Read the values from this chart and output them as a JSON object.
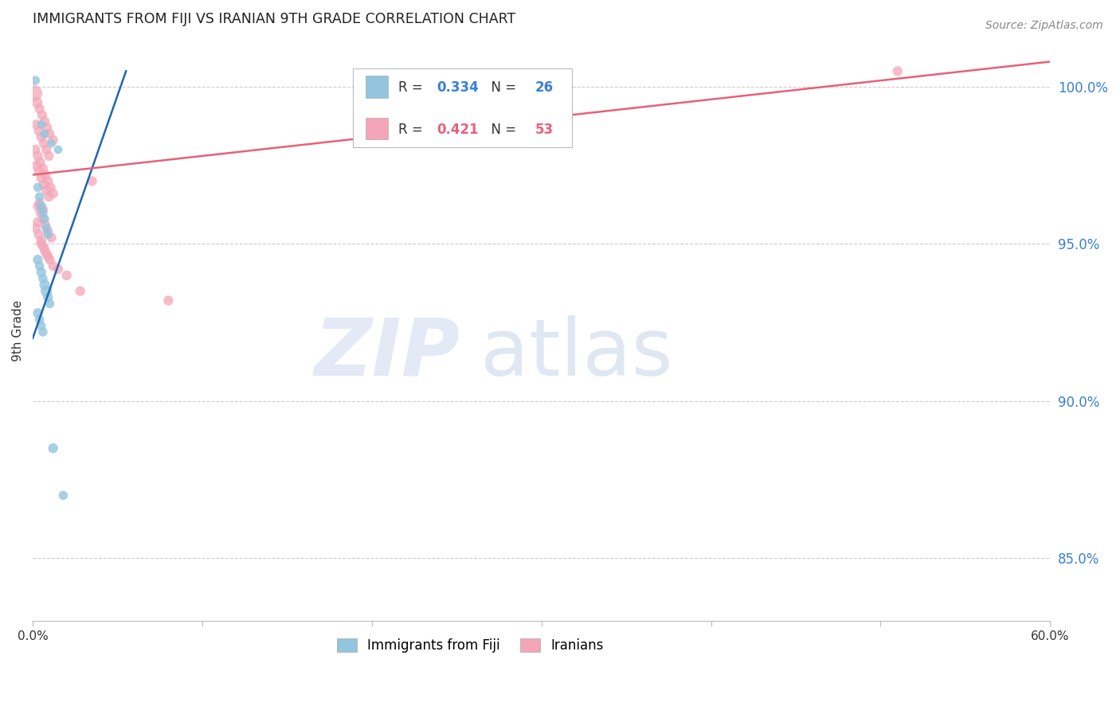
{
  "title": "IMMIGRANTS FROM FIJI VS IRANIAN 9TH GRADE CORRELATION CHART",
  "source": "Source: ZipAtlas.com",
  "ylabel": "9th Grade",
  "y_ticks": [
    85.0,
    90.0,
    95.0,
    100.0
  ],
  "y_tick_labels": [
    "85.0%",
    "90.0%",
    "95.0%",
    "100.0%"
  ],
  "xlim": [
    0.0,
    60.0
  ],
  "ylim": [
    83.0,
    101.5
  ],
  "fiji_R": 0.334,
  "fiji_N": 26,
  "iranian_R": 0.421,
  "iranian_N": 53,
  "fiji_color": "#92c5de",
  "iranian_color": "#f4a6b8",
  "fiji_line_color": "#2166ac",
  "iranian_line_color": "#e8607a",
  "fiji_points": [
    [
      0.15,
      100.2
    ],
    [
      0.5,
      98.8
    ],
    [
      0.7,
      98.5
    ],
    [
      1.1,
      98.2
    ],
    [
      1.5,
      98.0
    ],
    [
      0.3,
      96.8
    ],
    [
      0.4,
      96.5
    ],
    [
      0.5,
      96.2
    ],
    [
      0.6,
      96.0
    ],
    [
      0.7,
      95.8
    ],
    [
      0.8,
      95.5
    ],
    [
      0.9,
      95.3
    ],
    [
      0.3,
      94.5
    ],
    [
      0.4,
      94.3
    ],
    [
      0.5,
      94.1
    ],
    [
      0.6,
      93.9
    ],
    [
      0.7,
      93.7
    ],
    [
      0.8,
      93.5
    ],
    [
      0.9,
      93.3
    ],
    [
      1.0,
      93.1
    ],
    [
      0.3,
      92.8
    ],
    [
      0.4,
      92.6
    ],
    [
      0.5,
      92.4
    ],
    [
      0.6,
      92.2
    ],
    [
      1.2,
      88.5
    ],
    [
      1.8,
      87.0
    ]
  ],
  "fiji_sizes": [
    70,
    60,
    60,
    60,
    60,
    70,
    70,
    80,
    70,
    70,
    70,
    70,
    80,
    70,
    80,
    70,
    90,
    110,
    80,
    70,
    80,
    70,
    70,
    70,
    80,
    70
  ],
  "iranian_points": [
    [
      0.1,
      99.8
    ],
    [
      0.25,
      99.5
    ],
    [
      0.4,
      99.3
    ],
    [
      0.55,
      99.1
    ],
    [
      0.7,
      98.9
    ],
    [
      0.85,
      98.7
    ],
    [
      1.0,
      98.5
    ],
    [
      1.2,
      98.3
    ],
    [
      0.2,
      98.8
    ],
    [
      0.35,
      98.6
    ],
    [
      0.5,
      98.4
    ],
    [
      0.65,
      98.2
    ],
    [
      0.8,
      98.0
    ],
    [
      0.95,
      97.8
    ],
    [
      0.15,
      98.0
    ],
    [
      0.3,
      97.8
    ],
    [
      0.45,
      97.6
    ],
    [
      0.6,
      97.4
    ],
    [
      0.75,
      97.2
    ],
    [
      0.9,
      97.0
    ],
    [
      1.05,
      96.8
    ],
    [
      1.2,
      96.6
    ],
    [
      0.2,
      97.5
    ],
    [
      0.35,
      97.3
    ],
    [
      0.5,
      97.1
    ],
    [
      0.65,
      96.9
    ],
    [
      0.8,
      96.7
    ],
    [
      0.95,
      96.5
    ],
    [
      0.3,
      96.2
    ],
    [
      0.45,
      96.0
    ],
    [
      0.6,
      95.8
    ],
    [
      0.75,
      95.6
    ],
    [
      0.9,
      95.4
    ],
    [
      1.1,
      95.2
    ],
    [
      0.2,
      95.5
    ],
    [
      0.35,
      95.3
    ],
    [
      0.5,
      95.1
    ],
    [
      0.65,
      94.9
    ],
    [
      0.8,
      94.7
    ],
    [
      1.0,
      94.5
    ],
    [
      1.5,
      94.2
    ],
    [
      2.0,
      94.0
    ],
    [
      2.8,
      93.5
    ],
    [
      0.4,
      96.3
    ],
    [
      0.6,
      96.1
    ],
    [
      3.5,
      97.0
    ],
    [
      8.0,
      93.2
    ],
    [
      0.3,
      95.7
    ],
    [
      0.5,
      95.0
    ],
    [
      0.7,
      94.8
    ],
    [
      0.9,
      94.6
    ],
    [
      1.2,
      94.3
    ],
    [
      51.0,
      100.5
    ]
  ],
  "iranian_sizes": [
    200,
    100,
    80,
    80,
    80,
    80,
    80,
    80,
    80,
    80,
    80,
    80,
    80,
    80,
    80,
    80,
    80,
    80,
    80,
    80,
    80,
    80,
    80,
    80,
    80,
    80,
    80,
    80,
    80,
    80,
    80,
    80,
    80,
    80,
    80,
    80,
    80,
    80,
    80,
    80,
    80,
    80,
    80,
    80,
    80,
    80,
    80,
    80,
    80,
    80,
    80,
    80,
    80
  ],
  "fiji_trend": [
    0.0,
    5.5,
    92.0,
    100.5
  ],
  "iranian_trend": [
    0.0,
    60.0,
    97.2,
    100.8
  ]
}
